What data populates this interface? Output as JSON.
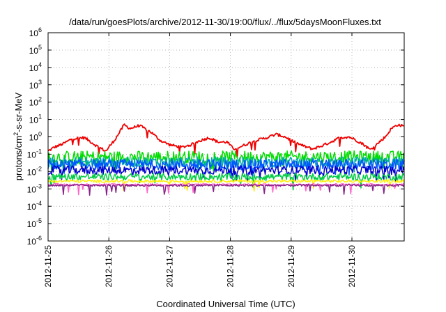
{
  "chart_data": {
    "type": "line",
    "title": "/data/run/goesPlots/archive/2012-11-30/19:00/flux/../flux/5daysMoonFluxes.txt",
    "xlabel": "Coordinated Universal Time (UTC)",
    "ylabel": {
      "prefix": "protons/cm",
      "sup": "2",
      "suffix": "-s-sr-MeV"
    },
    "y_scale": "log",
    "ylim_exponents": [
      -6,
      6
    ],
    "y_tick_base": "10",
    "y_tick_exponents": [
      "-6",
      "-5",
      "-4",
      "-3",
      "-2",
      "-1",
      "0",
      "1",
      "2",
      "3",
      "4",
      "5",
      "6"
    ],
    "x_tick_labels": [
      "2012-11-25",
      "2012-11-26",
      "2012-11-27",
      "2012-11-28",
      "2012-11-29",
      "2012-11-30"
    ],
    "x_range_days": [
      0,
      5.86
    ],
    "grid": true,
    "legend": "none",
    "series": [
      {
        "color": "#ee0000",
        "level": [
          [
            0,
            0.15
          ],
          [
            0.1,
            0.25
          ],
          [
            0.25,
            0.4
          ],
          [
            0.4,
            0.8
          ],
          [
            0.6,
            0.9
          ],
          [
            0.8,
            0.3
          ],
          [
            0.95,
            0.15
          ],
          [
            1.0,
            0.25
          ],
          [
            1.1,
            0.7
          ],
          [
            1.2,
            2.5
          ],
          [
            1.25,
            5
          ],
          [
            1.35,
            3
          ],
          [
            1.5,
            4.5
          ],
          [
            1.7,
            1.8
          ],
          [
            1.85,
            0.6
          ],
          [
            2.0,
            0.35
          ],
          [
            2.2,
            0.25
          ],
          [
            2.35,
            0.35
          ],
          [
            2.5,
            0.6
          ],
          [
            2.65,
            0.9
          ],
          [
            2.8,
            0.5
          ],
          [
            2.95,
            0.5
          ],
          [
            3.05,
            0.2
          ],
          [
            3.2,
            0.3
          ],
          [
            3.4,
            0.6
          ],
          [
            3.6,
            0.9
          ],
          [
            3.75,
            1.4
          ],
          [
            3.9,
            1.0
          ],
          [
            4.05,
            0.5
          ],
          [
            4.2,
            0.3
          ],
          [
            4.35,
            0.2
          ],
          [
            4.5,
            0.3
          ],
          [
            4.65,
            0.5
          ],
          [
            4.8,
            0.9
          ],
          [
            4.95,
            1.0
          ],
          [
            5.05,
            0.7
          ],
          [
            5.2,
            0.35
          ],
          [
            5.3,
            0.18
          ],
          [
            5.4,
            0.35
          ],
          [
            5.55,
            1.0
          ],
          [
            5.65,
            3
          ],
          [
            5.75,
            5
          ],
          [
            5.86,
            4
          ]
        ],
        "noise": 0.08,
        "dips": 0.03
      },
      {
        "color": "#00dd00",
        "level": [
          [
            0,
            0.07
          ],
          [
            5.86,
            0.07
          ]
        ],
        "noise": 0.35,
        "dips": 0.06
      },
      {
        "color": "#00aaaa",
        "level": [
          [
            0,
            0.035
          ],
          [
            5.86,
            0.035
          ]
        ],
        "noise": 0.3,
        "dips": 0.05
      },
      {
        "color": "#0055ff",
        "level": [
          [
            0,
            0.025
          ],
          [
            5.86,
            0.025
          ]
        ],
        "noise": 0.3,
        "dips": 0.05
      },
      {
        "color": "#0000cc",
        "level": [
          [
            0,
            0.012
          ],
          [
            5.86,
            0.012
          ]
        ],
        "noise": 0.25,
        "dips": 0.05
      },
      {
        "color": "#00cc44",
        "level": [
          [
            0,
            0.005
          ],
          [
            5.86,
            0.005
          ]
        ],
        "noise": 0.2,
        "dips": 0.03
      },
      {
        "color": "#ffee00",
        "level": [
          [
            0,
            0.0028
          ],
          [
            5.86,
            0.0028
          ]
        ],
        "noise": 0.08,
        "dips": 0.02
      },
      {
        "color": "#ff66cc",
        "level": [
          [
            0,
            0.0018
          ],
          [
            5.86,
            0.0018
          ]
        ],
        "noise": 0.05,
        "dips": 0.02
      },
      {
        "color": "#882288",
        "level": [
          [
            0,
            0.0016
          ],
          [
            5.86,
            0.0016
          ]
        ],
        "noise": 0.06,
        "dips": 0.04
      }
    ]
  }
}
